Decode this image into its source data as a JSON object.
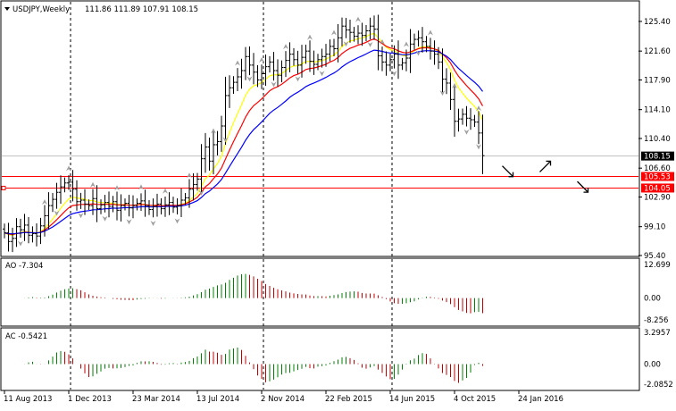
{
  "chart_data": [
    {
      "type": "ohlc",
      "title": "USDJPY,Weekly",
      "ohlc_readout": "111.86 111.89 107.91 108.15",
      "y_ticks": [
        "125.40",
        "121.60",
        "117.90",
        "114.10",
        "110.40",
        "106.60",
        "102.90",
        "99.10",
        "95.40"
      ],
      "ylim": [
        95.4,
        127.0
      ],
      "x_ticks": [
        "11 Aug 2013",
        "1 Dec 2013",
        "23 Mar 2014",
        "13 Jul 2014",
        "2 Nov 2014",
        "22 Feb 2015",
        "14 Jun 2015",
        "4 Oct 2015",
        "24 Jan 2016"
      ],
      "x_tick_bar_index": [
        0,
        16,
        32,
        48,
        64,
        80,
        96,
        112,
        128
      ],
      "current_price": {
        "label": "108.15",
        "value": 108.15,
        "color": "#000000"
      },
      "levels": [
        {
          "label": "105.53",
          "value": 105.53,
          "color": "#ff0000"
        },
        {
          "label": "104.05",
          "value": 104.05,
          "color": "#ff0000"
        }
      ],
      "moving_averages": [
        {
          "color": "#ffff00",
          "period": 5
        },
        {
          "color": "#ff0000",
          "period": 8
        },
        {
          "color": "#0000ff",
          "period": 13
        }
      ],
      "closes": [
        98.3,
        97.2,
        97.6,
        99.1,
        98.7,
        99.3,
        98.0,
        98.2,
        97.9,
        99.2,
        100.5,
        101.8,
        102.6,
        103.5,
        104.2,
        104.7,
        104.8,
        103.9,
        102.3,
        102.5,
        102.0,
        101.8,
        102.7,
        101.4,
        101.9,
        102.2,
        101.7,
        102.3,
        101.2,
        101.8,
        102.1,
        101.5,
        101.8,
        102.1,
        102.4,
        101.8,
        101.3,
        101.7,
        102.0,
        101.4,
        101.9,
        102.2,
        101.6,
        101.8,
        102.5,
        102.8,
        103.9,
        104.5,
        105.2,
        107.8,
        109.3,
        107.5,
        109.6,
        110.0,
        112.0,
        115.9,
        116.9,
        117.6,
        118.3,
        119.1,
        120.9,
        119.8,
        118.9,
        117.9,
        118.7,
        119.6,
        120.2,
        119.1,
        118.5,
        119.5,
        120.4,
        121.2,
        120.5,
        119.8,
        120.8,
        121.6,
        120.3,
        119.9,
        120.5,
        120.9,
        121.2,
        122.2,
        121.9,
        123.3,
        124.8,
        124.3,
        124.0,
        123.5,
        123.9,
        123.6,
        124.2,
        124.8,
        124.4,
        121.0,
        120.2,
        119.8,
        120.5,
        121.2,
        119.8,
        120.1,
        120.7,
        122.5,
        123.1,
        123.3,
        122.8,
        122.2,
        121.6,
        121.2,
        120.2,
        118.0,
        117.5,
        115.4,
        112.6,
        112.9,
        113.5,
        113.0,
        112.8,
        112.5,
        111.1,
        108.2
      ],
      "fractals_up": [
        10,
        16,
        22,
        28,
        34,
        40,
        46,
        52,
        58,
        64,
        70,
        76,
        82,
        88,
        94,
        100,
        106,
        112,
        118
      ],
      "fractals_down": [
        4,
        13,
        19,
        25,
        31,
        37,
        43,
        49,
        55,
        61,
        67,
        73,
        79,
        85,
        91,
        97,
        103,
        109,
        115,
        118
      ],
      "trend_arrows": [
        {
          "direction": "down",
          "at_value": 106.2
        },
        {
          "direction": "up",
          "at_value": 106.8
        },
        {
          "direction": "down",
          "at_value": 104.2
        }
      ]
    },
    {
      "type": "histogram",
      "indicator": "AO",
      "label": "AO -7.304",
      "y_ticks": [
        "12.699",
        "0.00",
        "-8.256"
      ],
      "ylim": [
        -8.256,
        12.699
      ]
    },
    {
      "type": "histogram",
      "indicator": "AC",
      "label": "AC -0.5421",
      "y_ticks": [
        "3.2957",
        "0.00",
        "-2.0852"
      ],
      "ylim": [
        -2.0852,
        3.2957
      ]
    }
  ],
  "colors": {
    "up": "#008000",
    "down": "#c00000",
    "fractal": "#a0a0a0"
  }
}
